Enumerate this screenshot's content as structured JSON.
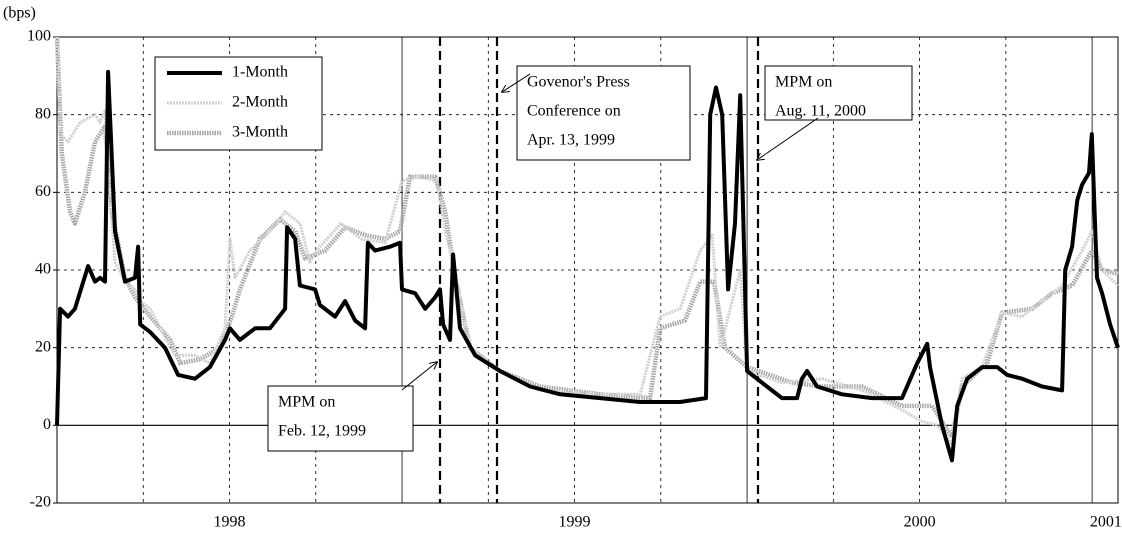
{
  "chart_data": {
    "type": "line",
    "y_label": "(bps)",
    "xlim": [
      1998,
      2001.075
    ],
    "xticks": [
      {
        "value": 1998.5,
        "label": "1998"
      },
      {
        "value": 1999.5,
        "label": "1999"
      },
      {
        "value": 2000.5,
        "label": "2000"
      },
      {
        "value": 2001.04,
        "label": "2001"
      }
    ],
    "ylim": [
      -20,
      100
    ],
    "yticks": [
      -20,
      0,
      20,
      40,
      60,
      80,
      100
    ],
    "grid": true,
    "legend": "upper left",
    "series": [
      {
        "name": "1-Month",
        "color": "#000000",
        "x": [
          1998.0,
          1998.009,
          1998.032,
          1998.052,
          1998.09,
          1998.11,
          1998.125,
          1998.139,
          1998.148,
          1998.168,
          1998.197,
          1998.226,
          1998.235,
          1998.241,
          1998.27,
          1998.313,
          1998.351,
          1998.4,
          1998.443,
          1998.487,
          1998.501,
          1998.53,
          1998.574,
          1998.617,
          1998.661,
          1998.667,
          1998.69,
          1998.704,
          1998.748,
          1998.762,
          1998.806,
          1998.835,
          1998.864,
          1998.893,
          1998.901,
          1998.922,
          1998.965,
          1998.994,
          1999.0,
          1999.038,
          1999.067,
          1999.096,
          1999.11,
          1999.119,
          1999.139,
          1999.148,
          1999.168,
          1999.212,
          1999.284,
          1999.371,
          1999.458,
          1999.574,
          1999.69,
          1999.806,
          1999.881,
          1999.893,
          1999.91,
          1999.928,
          1999.945,
          1999.965,
          1999.98,
          2000.0,
          2000.043,
          2000.101,
          2000.145,
          2000.159,
          2000.174,
          2000.203,
          2000.275,
          2000.362,
          2000.449,
          2000.493,
          2000.522,
          2000.53,
          2000.565,
          2000.594,
          2000.609,
          2000.638,
          2000.681,
          2000.725,
          2000.754,
          2000.797,
          2000.855,
          2000.913,
          2000.922,
          2000.942,
          2000.957,
          2000.971,
          2000.991,
          2000.999,
          2001.014,
          2001.029,
          2001.052,
          2001.075
        ],
        "values": [
          0,
          30,
          28,
          30,
          41,
          37,
          38,
          37,
          91,
          50,
          37,
          38,
          46,
          26,
          24,
          20,
          13,
          12,
          15,
          22,
          25,
          22,
          25,
          25,
          30,
          51,
          48,
          36,
          35,
          31,
          28,
          32,
          27,
          25,
          47,
          45,
          46,
          47,
          35,
          34,
          30,
          33,
          35,
          26,
          22,
          44,
          25,
          18,
          14,
          10,
          8,
          7,
          6,
          6,
          7,
          80,
          87,
          80,
          35,
          52,
          85,
          14,
          11,
          7,
          7,
          12,
          14,
          10,
          8,
          7,
          7,
          16,
          21,
          15,
          0,
          -9,
          5,
          12,
          15,
          15,
          13,
          12,
          10,
          9,
          40,
          46,
          58,
          62,
          65,
          75,
          38,
          34,
          26,
          20
        ]
      },
      {
        "name": "2-Month",
        "color": "#cfcfcf",
        "x": [
          1998.0,
          1998.009,
          1998.032,
          1998.067,
          1998.11,
          1998.125,
          1998.139,
          1998.154,
          1998.168,
          1998.197,
          1998.226,
          1998.241,
          1998.27,
          1998.299,
          1998.342,
          1998.4,
          1998.443,
          1998.487,
          1998.501,
          1998.516,
          1998.559,
          1998.617,
          1998.661,
          1998.704,
          1998.733,
          1998.762,
          1998.823,
          1998.881,
          1998.951,
          1999.0,
          1999.052,
          1999.101,
          1999.125,
          1999.154,
          1999.197,
          1999.284,
          1999.4,
          1999.574,
          1999.69,
          1999.748,
          1999.806,
          1999.864,
          1999.899,
          1999.922,
          1999.98,
          2000.0,
          2000.101,
          2000.217,
          2000.333,
          2000.449,
          2000.507,
          2000.551,
          2000.594,
          2000.623,
          2000.681,
          2000.739,
          2000.797,
          2000.855,
          2000.913,
          2000.971,
          2000.999,
          2001.029,
          2001.075
        ],
        "values": [
          100,
          75,
          73,
          78,
          80,
          78,
          81,
          60,
          42,
          37,
          35,
          32,
          30,
          25,
          18,
          18,
          16,
          25,
          48,
          38,
          45,
          50,
          55,
          52,
          42,
          46,
          52,
          48,
          47,
          63,
          64,
          63,
          50,
          40,
          20,
          14,
          9,
          8,
          8,
          28,
          30,
          45,
          49,
          20,
          40,
          14,
          11,
          12,
          9,
          4,
          1,
          0,
          -5,
          12,
          15,
          29,
          28,
          32,
          36,
          45,
          50,
          40,
          36
        ]
      },
      {
        "name": "3-Month",
        "color": "#a6a6a6",
        "x": [
          1998.0,
          1998.014,
          1998.038,
          1998.052,
          1998.081,
          1998.11,
          1998.139,
          1998.159,
          1998.197,
          1998.226,
          1998.27,
          1998.328,
          1998.357,
          1998.414,
          1998.472,
          1998.507,
          1998.53,
          1998.588,
          1998.646,
          1998.69,
          1998.719,
          1998.777,
          1998.835,
          1998.893,
          1998.951,
          1998.994,
          1999.023,
          1999.096,
          1999.125,
          1999.154,
          1999.197,
          1999.284,
          1999.4,
          1999.574,
          1999.719,
          1999.748,
          1999.82,
          1999.864,
          1999.904,
          1999.936,
          2000.0,
          2000.13,
          2000.217,
          2000.333,
          2000.449,
          2000.536,
          2000.594,
          2000.623,
          2000.696,
          2000.739,
          2000.826,
          2000.884,
          2000.942,
          2000.999,
          2001.029,
          2001.075
        ],
        "values": [
          100,
          70,
          55,
          52,
          60,
          73,
          77,
          55,
          38,
          33,
          28,
          22,
          16,
          17,
          20,
          28,
          35,
          48,
          53,
          50,
          43,
          45,
          51,
          49,
          48,
          50,
          64,
          64,
          55,
          38,
          20,
          14,
          10,
          8,
          7,
          25,
          27,
          37,
          37,
          20,
          15,
          11,
          10,
          10,
          5,
          5,
          -3,
          10,
          16,
          29,
          30,
          34,
          36,
          45,
          40,
          39
        ]
      }
    ],
    "annotations": [
      {
        "lines": [
          "MPM on",
          "Feb. 12, 1999"
        ]
      },
      {
        "lines": [
          "Govenor's Press",
          "Conference on",
          "Apr. 13, 1999"
        ]
      },
      {
        "lines": [
          "MPM on",
          "Aug. 11, 2000"
        ]
      }
    ]
  }
}
